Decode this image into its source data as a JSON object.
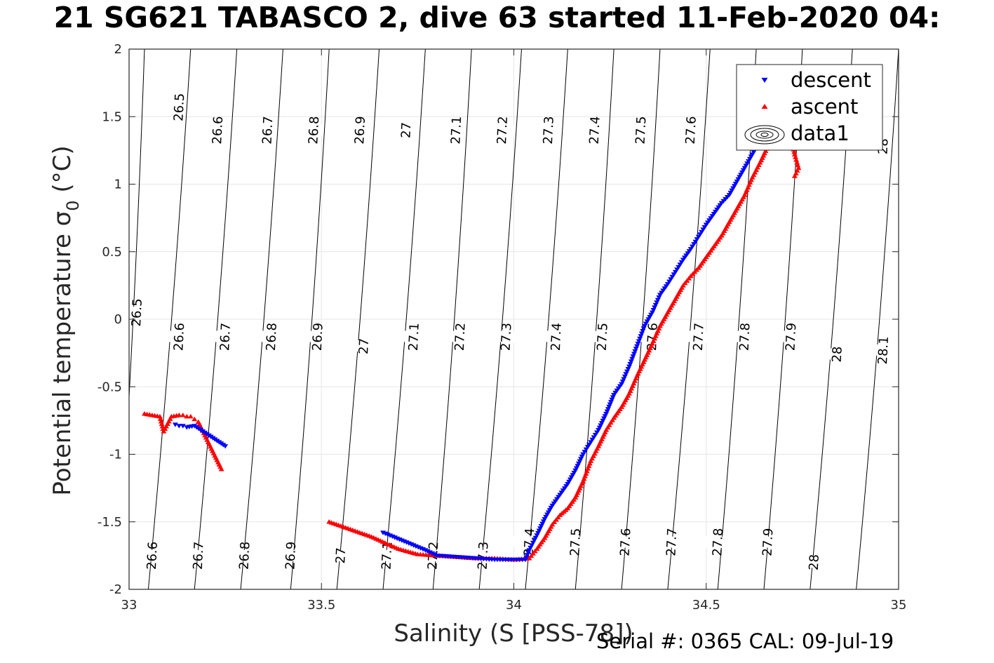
{
  "chart_data": {
    "type": "scatter",
    "title": "21 SG621 TABASCO 2, dive 63 started 11-Feb-2020 04:",
    "xlabel": "Salinity (S [PSS-78])",
    "ylabel": "Potential temperature σ₀ (°C)",
    "xlim": [
      33,
      35
    ],
    "ylim": [
      -2,
      2
    ],
    "xticks": [
      33,
      33.5,
      34,
      34.5,
      35
    ],
    "yticks": [
      2,
      1.5,
      1,
      0.5,
      0,
      -0.5,
      -1,
      -1.5,
      -2
    ],
    "xtick_labels": [
      "33",
      "33.5",
      "34",
      "34.5",
      "35"
    ],
    "ytick_labels": [
      "2",
      "1.5",
      "1",
      "0.5",
      "0",
      "-0.5",
      "-1",
      "-1.5",
      "-2"
    ],
    "grid": true,
    "legend_position": "top-right",
    "colors": {
      "descent": "#0000ff",
      "ascent": "#ff0000",
      "contour": "#000000"
    },
    "legend": [
      {
        "label": "descent",
        "marker": "triangle-down",
        "color": "#0000ff"
      },
      {
        "label": "ascent",
        "marker": "triangle-up",
        "color": "#ff0000"
      },
      {
        "label": "data1",
        "marker": "contour",
        "color": "#000000"
      }
    ],
    "contours": [
      {
        "level": "26.5",
        "top": [
          33.04,
          2.0
        ],
        "bottom": [
          32.97,
          -2.0
        ],
        "labels": [
          [
            33.13,
            1.57
          ],
          [
            33.02,
            0.05
          ]
        ]
      },
      {
        "level": "26.6",
        "top": [
          33.16,
          2.0
        ],
        "bottom": [
          33.05,
          -2.0
        ],
        "labels": [
          [
            33.23,
            1.4
          ],
          [
            33.13,
            -0.13
          ],
          [
            33.06,
            -1.75
          ]
        ]
      },
      {
        "level": "26.7",
        "top": [
          33.28,
          2.0
        ],
        "bottom": [
          33.17,
          -2.0
        ],
        "labels": [
          [
            33.36,
            1.4
          ],
          [
            33.25,
            -0.13
          ],
          [
            33.18,
            -1.75
          ]
        ]
      },
      {
        "level": "26.8",
        "top": [
          33.4,
          2.0
        ],
        "bottom": [
          33.29,
          -2.0
        ],
        "labels": [
          [
            33.48,
            1.4
          ],
          [
            33.37,
            -0.13
          ],
          [
            33.3,
            -1.75
          ]
        ]
      },
      {
        "level": "26.9",
        "top": [
          33.52,
          2.0
        ],
        "bottom": [
          33.42,
          -2.0
        ],
        "labels": [
          [
            33.6,
            1.4
          ],
          [
            33.49,
            -0.13
          ],
          [
            33.42,
            -1.75
          ]
        ]
      },
      {
        "level": "27",
        "top": [
          33.65,
          2.0
        ],
        "bottom": [
          33.54,
          -2.0
        ],
        "labels": [
          [
            33.72,
            1.4
          ],
          [
            33.61,
            -0.2
          ],
          [
            33.55,
            -1.75
          ]
        ]
      },
      {
        "level": "27.1",
        "top": [
          33.77,
          2.0
        ],
        "bottom": [
          33.66,
          -2.0
        ],
        "labels": [
          [
            33.85,
            1.4
          ],
          [
            33.74,
            -0.13
          ],
          [
            33.67,
            -1.75
          ]
        ]
      },
      {
        "level": "27.2",
        "top": [
          33.89,
          2.0
        ],
        "bottom": [
          33.79,
          -2.0
        ],
        "labels": [
          [
            33.97,
            1.4
          ],
          [
            33.86,
            -0.13
          ],
          [
            33.79,
            -1.75
          ]
        ]
      },
      {
        "level": "27.3",
        "top": [
          34.02,
          2.0
        ],
        "bottom": [
          33.91,
          -2.0
        ],
        "labels": [
          [
            34.09,
            1.4
          ],
          [
            33.98,
            -0.13
          ],
          [
            33.92,
            -1.75
          ]
        ]
      },
      {
        "level": "27.4",
        "top": [
          34.14,
          2.0
        ],
        "bottom": [
          34.03,
          -2.0
        ],
        "labels": [
          [
            34.21,
            1.4
          ],
          [
            34.11,
            -0.13
          ],
          [
            34.04,
            -1.65
          ]
        ]
      },
      {
        "level": "27.5",
        "top": [
          34.26,
          2.0
        ],
        "bottom": [
          34.16,
          -2.0
        ],
        "labels": [
          [
            34.33,
            1.4
          ],
          [
            34.23,
            -0.13
          ],
          [
            34.16,
            -1.65
          ]
        ]
      },
      {
        "level": "27.6",
        "top": [
          34.38,
          2.0
        ],
        "bottom": [
          34.28,
          -2.0
        ],
        "labels": [
          [
            34.46,
            1.4
          ],
          [
            34.36,
            -0.13
          ],
          [
            34.29,
            -1.65
          ]
        ]
      },
      {
        "level": "27.7",
        "top": [
          34.51,
          2.0
        ],
        "bottom": [
          34.4,
          -2.0
        ],
        "labels": [
          [
            34.48,
            -0.13
          ],
          [
            34.41,
            -1.65
          ]
        ]
      },
      {
        "level": "27.8",
        "top": [
          34.63,
          2.0
        ],
        "bottom": [
          34.53,
          -2.0
        ],
        "labels": [
          [
            34.6,
            -0.13
          ],
          [
            34.53,
            -1.65
          ]
        ]
      },
      {
        "level": "27.9",
        "top": [
          34.75,
          2.0
        ],
        "bottom": [
          34.65,
          -2.0
        ],
        "labels": [
          [
            34.72,
            -0.13
          ],
          [
            34.66,
            -1.65
          ]
        ]
      },
      {
        "level": "28",
        "top": [
          34.88,
          2.0
        ],
        "bottom": [
          34.77,
          -2.0
        ],
        "labels": [
          [
            34.96,
            1.28
          ],
          [
            34.84,
            -0.26
          ],
          [
            34.78,
            -1.8
          ]
        ]
      },
      {
        "level": "28.1",
        "top": [
          35.0,
          2.0
        ],
        "bottom": [
          34.89,
          -2.0
        ],
        "labels": [
          [
            34.96,
            -0.23
          ]
        ]
      }
    ],
    "series": [
      {
        "name": "descent",
        "marker": "triangle-down",
        "color": "#0000ff",
        "x": [
          33.12,
          33.13,
          33.14,
          33.15,
          33.17,
          33.25,
          33.66,
          33.77,
          33.8,
          33.85,
          33.9,
          33.95,
          34.0,
          34.03,
          34.04,
          34.06,
          34.08,
          34.1,
          34.12,
          34.14,
          34.16,
          34.18,
          34.2,
          34.22,
          34.24,
          34.26,
          34.28,
          34.3,
          34.32,
          34.34,
          34.36,
          34.38,
          34.4,
          34.42,
          34.44,
          34.46,
          34.48,
          34.5,
          34.52,
          34.54,
          34.56,
          34.58,
          34.6,
          34.62,
          34.64,
          34.66,
          34.67
        ],
        "y": [
          -0.78,
          -0.79,
          -0.79,
          -0.8,
          -0.79,
          -0.94,
          -1.58,
          -1.71,
          -1.75,
          -1.76,
          -1.77,
          -1.78,
          -1.78,
          -1.78,
          -1.71,
          -1.6,
          -1.48,
          -1.38,
          -1.3,
          -1.22,
          -1.12,
          -1.0,
          -0.91,
          -0.82,
          -0.7,
          -0.56,
          -0.48,
          -0.35,
          -0.2,
          -0.05,
          0.05,
          0.18,
          0.26,
          0.35,
          0.44,
          0.52,
          0.61,
          0.7,
          0.78,
          0.86,
          0.92,
          1.02,
          1.12,
          1.22,
          1.32,
          1.45,
          1.52
        ]
      },
      {
        "name": "ascent",
        "marker": "triangle-up",
        "color": "#ff0000",
        "x": [
          33.04,
          33.06,
          33.08,
          33.09,
          33.11,
          33.13,
          33.14,
          33.15,
          33.16,
          33.17,
          33.18,
          33.24,
          33.52,
          33.63,
          33.7,
          33.75,
          33.8,
          33.85,
          33.9,
          33.95,
          34.0,
          34.04,
          34.06,
          34.08,
          34.1,
          34.12,
          34.14,
          34.16,
          34.18,
          34.2,
          34.22,
          34.24,
          34.26,
          34.28,
          34.3,
          34.32,
          34.34,
          34.36,
          34.38,
          34.4,
          34.42,
          34.44,
          34.46,
          34.48,
          34.5,
          34.52,
          34.54,
          34.56,
          34.58,
          34.6,
          34.62,
          34.64,
          34.66,
          34.68,
          34.72,
          34.73,
          34.74,
          34.73
        ],
        "y": [
          -0.7,
          -0.71,
          -0.72,
          -0.83,
          -0.72,
          -0.71,
          -0.71,
          -0.72,
          -0.72,
          -0.74,
          -0.76,
          -1.11,
          -1.5,
          -1.61,
          -1.7,
          -1.74,
          -1.75,
          -1.76,
          -1.77,
          -1.77,
          -1.78,
          -1.77,
          -1.7,
          -1.62,
          -1.52,
          -1.45,
          -1.4,
          -1.32,
          -1.2,
          -1.05,
          -0.94,
          -0.82,
          -0.73,
          -0.65,
          -0.55,
          -0.42,
          -0.3,
          -0.18,
          -0.05,
          0.05,
          0.15,
          0.25,
          0.32,
          0.38,
          0.46,
          0.54,
          0.62,
          0.72,
          0.82,
          0.92,
          1.05,
          1.16,
          1.28,
          1.4,
          1.35,
          1.22,
          1.12,
          1.06
        ]
      }
    ]
  },
  "footer": {
    "serial": "Serial #: 0365  CAL: 09-Jul-19"
  }
}
